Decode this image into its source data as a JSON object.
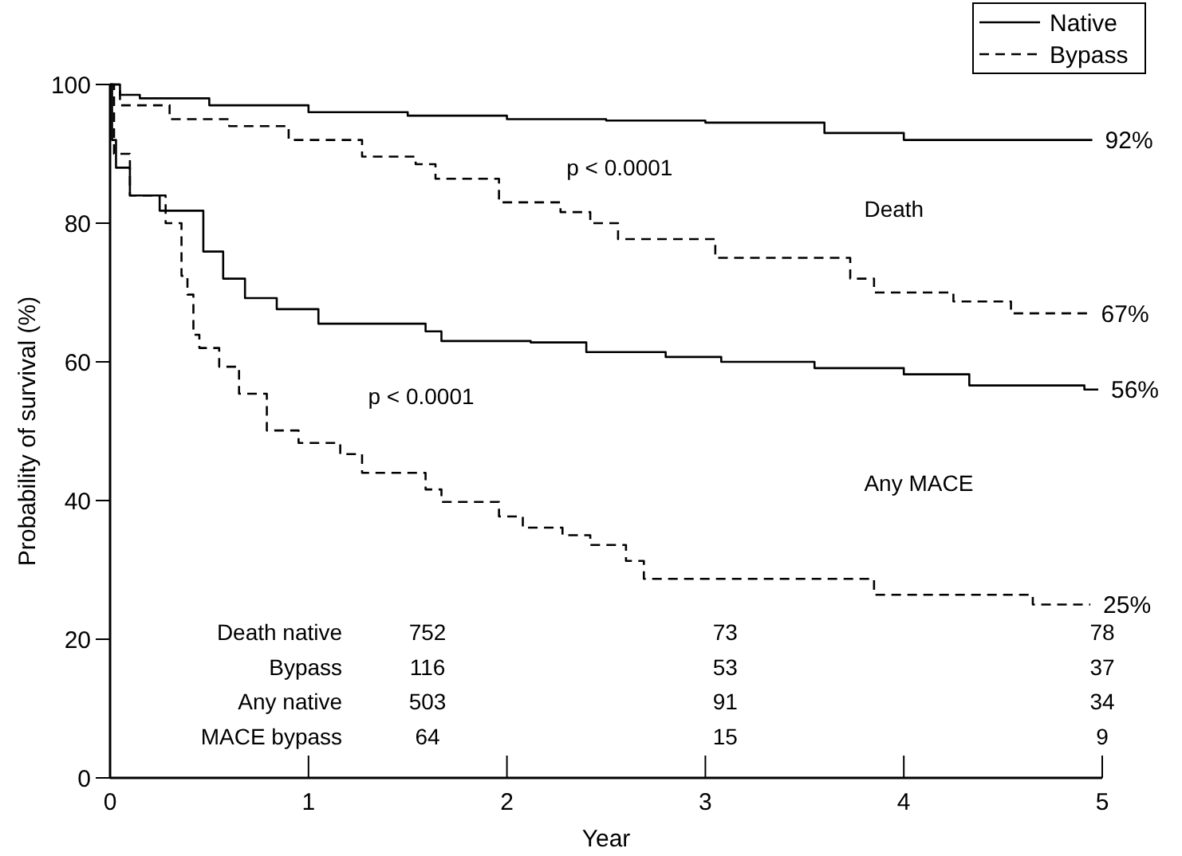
{
  "chart_data": {
    "type": "step",
    "xlabel": "Year",
    "ylabel": "Probability of survival (%)",
    "xlim": [
      0,
      5
    ],
    "ylim": [
      0,
      100
    ],
    "xticks": [
      0,
      1,
      2,
      3,
      4,
      5
    ],
    "yticks": [
      0,
      20,
      40,
      60,
      80,
      100
    ],
    "legend": "top right",
    "grid": false,
    "series": [
      {
        "name": "Native",
        "color": "#000000",
        "line_style": "solid",
        "x": [
          0,
          0.05,
          0.15,
          0.5,
          1,
          1.5,
          2,
          2.5,
          3,
          3.6,
          4,
          4.95
        ],
        "values": [
          100,
          98.5,
          98,
          97,
          96,
          95.5,
          95,
          94.8,
          94.5,
          93,
          92,
          92
        ],
        "value_labels": [
          null,
          null,
          null,
          null,
          null,
          null,
          null,
          null,
          null,
          null,
          null,
          "92%"
        ]
      },
      {
        "name": "Bypass",
        "color": "#000000",
        "line_style": "dashed",
        "x": [
          0,
          0.05,
          0.3,
          0.6,
          0.9,
          1.27,
          1.54,
          1.64,
          1.96,
          2.27,
          2.42,
          2.56,
          3.05,
          3.73,
          3.85,
          4.25,
          4.54,
          4.93
        ],
        "values": [
          100,
          97,
          95,
          94,
          92,
          89.6,
          88.5,
          86.4,
          83,
          81.6,
          80,
          77.7,
          75,
          72,
          70,
          68.7,
          67,
          67
        ],
        "value_labels": [
          null,
          null,
          null,
          null,
          null,
          null,
          null,
          null,
          null,
          null,
          null,
          null,
          null,
          null,
          null,
          null,
          null,
          "67%"
        ]
      },
      {
        "color": "#000000",
        "line_style": "solid",
        "x": [
          0,
          0.01,
          0.03,
          0.1,
          0.25,
          0.47,
          0.57,
          0.68,
          0.84,
          1.05,
          1.59,
          1.67,
          2.12,
          2.4,
          2.8,
          3.08,
          3.55,
          4.0,
          4.33,
          4.91,
          4.98
        ],
        "values": [
          100,
          92,
          88,
          84,
          81.8,
          75.9,
          72,
          69.2,
          67.6,
          65.5,
          64.4,
          63,
          62.8,
          61.4,
          60.7,
          60,
          59.1,
          58.2,
          56.6,
          56,
          56
        ],
        "value_labels": [
          null,
          null,
          null,
          null,
          null,
          null,
          null,
          null,
          null,
          null,
          null,
          null,
          null,
          null,
          null,
          null,
          null,
          null,
          null,
          null,
          "56%"
        ]
      },
      {
        "color": "#000000",
        "line_style": "dashed",
        "x": [
          0,
          0.02,
          0.1,
          0.28,
          0.36,
          0.39,
          0.42,
          0.45,
          0.55,
          0.65,
          0.79,
          0.95,
          1.16,
          1.27,
          1.59,
          1.67,
          1.96,
          2.08,
          2.28,
          2.42,
          2.6,
          2.69,
          3.85,
          4.65,
          4.94
        ],
        "values": [
          100,
          90,
          84,
          80,
          72.4,
          69.7,
          63.9,
          62,
          59.3,
          55.4,
          50.1,
          48.3,
          46.7,
          44,
          41.6,
          39.8,
          37.7,
          36.1,
          35,
          33.6,
          31.3,
          28.7,
          26.4,
          25,
          25
        ],
        "value_labels": [
          null,
          null,
          null,
          null,
          null,
          null,
          null,
          null,
          null,
          null,
          null,
          null,
          null,
          null,
          null,
          null,
          null,
          null,
          null,
          null,
          null,
          null,
          null,
          null,
          "25%"
        ]
      }
    ],
    "annotations": [
      "p < 0.0001",
      "Death",
      "p < 0.0001",
      "Any MACE",
      "Death native",
      "Bypass",
      "Any native",
      "MACE bypass",
      "752",
      "116",
      "503",
      "64",
      "73",
      "53",
      "91",
      "15",
      "78",
      "37",
      "34",
      "9"
    ]
  }
}
